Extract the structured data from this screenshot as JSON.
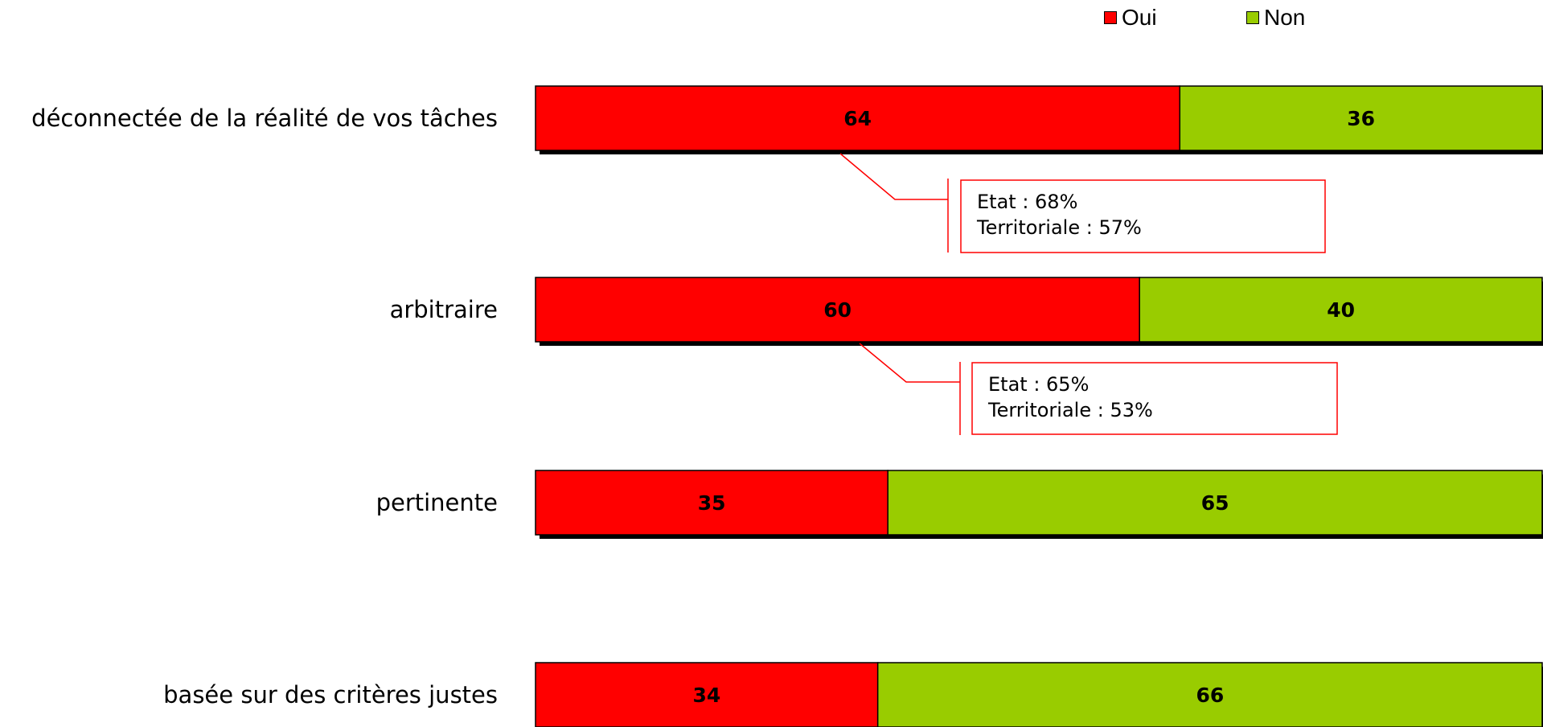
{
  "chart_data": {
    "type": "bar",
    "orientation": "horizontal",
    "stacked": true,
    "percent_stacked": true,
    "categories": [
      "déconnectée de la réalité de vos tâches",
      "arbitraire",
      "pertinente",
      "basée sur des critères justes"
    ],
    "series": [
      {
        "name": "Oui",
        "color": "#ff0000",
        "values": [
          64,
          60,
          35,
          34
        ]
      },
      {
        "name": "Non",
        "color": "#99cc00",
        "values": [
          36,
          40,
          65,
          66
        ]
      }
    ],
    "xlim": [
      0,
      100
    ],
    "grid": false,
    "legend_position": "top-right",
    "annotations": [
      {
        "category": "déconnectée de la réalité de vos tâches",
        "lines": [
          "Etat : 68%",
          "Territoriale : 57%"
        ],
        "color": "#ff0000"
      },
      {
        "category": "arbitraire",
        "lines": [
          "Etat : 65%",
          "Territoriale : 53%"
        ],
        "color": "#ff0000"
      }
    ]
  }
}
